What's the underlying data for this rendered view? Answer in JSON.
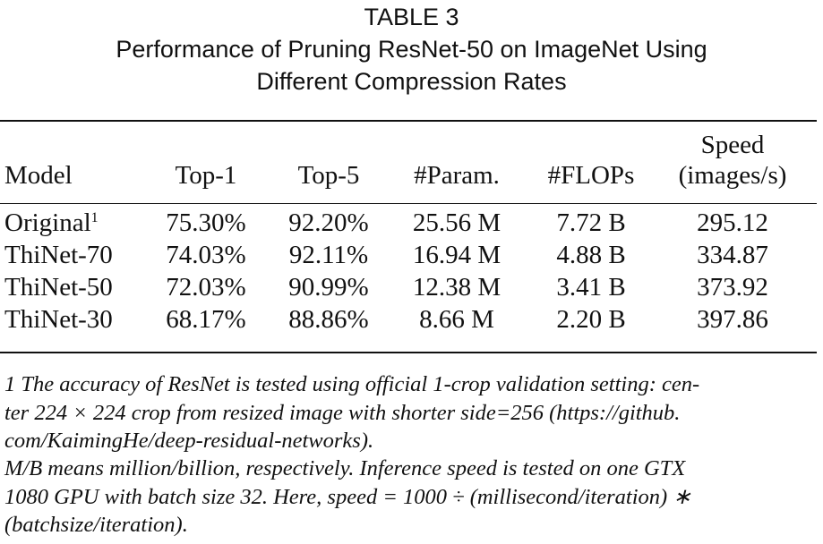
{
  "title": {
    "label": "TABLE 3",
    "lines": [
      "Performance of Pruning ResNet-50 on ImageNet Using",
      "Different Compression Rates"
    ]
  },
  "table": {
    "header": [
      "Model",
      "Top-1",
      "Top-5",
      "#Param.",
      "#FLOPs"
    ],
    "speed_header": [
      "Speed",
      "(images/s)"
    ],
    "rows": [
      {
        "model": "Original",
        "note": "1",
        "values": [
          "75.30%",
          "92.20%",
          "25.56 M",
          "7.72 B",
          "295.12"
        ]
      },
      {
        "model": "ThiNet-70",
        "values": [
          "74.03%",
          "92.11%",
          "16.94 M",
          "4.88 B",
          "334.87"
        ]
      },
      {
        "model": "ThiNet-50",
        "values": [
          "72.03%",
          "90.99%",
          "12.38 M",
          "3.41 B",
          "373.92"
        ]
      },
      {
        "model": "ThiNet-30",
        "values": [
          "68.17%",
          "88.86%",
          "8.66 M",
          "2.20 B",
          "397.86"
        ]
      }
    ]
  },
  "notes": [
    [
      "1 The accuracy of ResNet is tested using official 1-crop validation setting: cen-",
      "ter 224 × 224 crop from resized image with shorter side=256 (https://github.",
      "com/KaimingHe/deep-residual-networks)."
    ],
    [
      "M/B means million/billion, respectively. Inference speed is tested on one GTX",
      "1080 GPU with batch size 32. Here, speed = 1000 ÷ (millisecond/iteration) ∗",
      "(batchsize/iteration)."
    ]
  ]
}
